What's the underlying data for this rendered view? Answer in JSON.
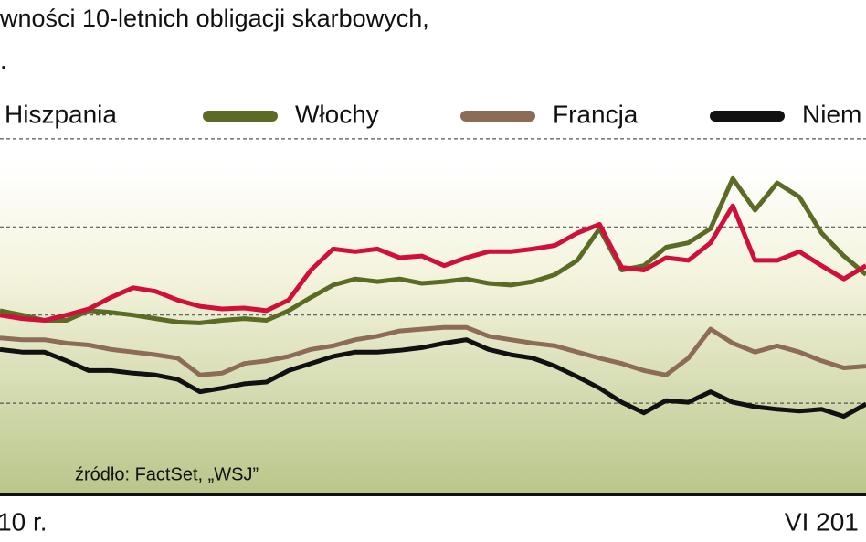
{
  "chart_data": {
    "type": "line",
    "title": "wności 10-letnich obligacji skarbowych,",
    "subtitle": ".",
    "source": "źródło: FactSet, „WSJ”",
    "categories": [
      null,
      "10 r.",
      null,
      null,
      null,
      null,
      null,
      null,
      null,
      null,
      null,
      null,
      null,
      null,
      null,
      null,
      null,
      null,
      null,
      null,
      null,
      null,
      null,
      null,
      null,
      null,
      null,
      null,
      null,
      null,
      null,
      null,
      null,
      null,
      null,
      null,
      null,
      "VI 201",
      null,
      null
    ],
    "ylim": [
      2,
      7
    ],
    "yticks": [
      3,
      4,
      5,
      6
    ],
    "grid": true,
    "series": [
      {
        "name": "Hiszpania",
        "color": "#d0103a",
        "values": [
          4.0,
          3.96,
          3.94,
          4.0,
          4.07,
          4.2,
          4.31,
          4.27,
          4.17,
          4.1,
          4.07,
          4.08,
          4.05,
          4.17,
          4.51,
          4.75,
          4.72,
          4.75,
          4.65,
          4.67,
          4.56,
          4.65,
          4.72,
          4.72,
          4.75,
          4.79,
          4.93,
          5.03,
          4.54,
          4.51,
          4.65,
          4.62,
          4.82,
          5.24,
          4.62,
          4.62,
          4.72,
          4.56,
          4.41,
          4.56
        ]
      },
      {
        "name": "Włochy",
        "color": "#5b6b26",
        "values": [
          4.05,
          4.0,
          3.94,
          3.94,
          4.05,
          4.03,
          4.0,
          3.96,
          3.92,
          3.91,
          3.94,
          3.96,
          3.94,
          4.05,
          4.2,
          4.34,
          4.41,
          4.38,
          4.41,
          4.36,
          4.38,
          4.41,
          4.36,
          4.34,
          4.38,
          4.46,
          4.62,
          4.98,
          4.51,
          4.56,
          4.77,
          4.82,
          4.98,
          5.55,
          5.19,
          5.5,
          5.34,
          4.93,
          4.67,
          4.46
        ]
      },
      {
        "name": "Francja",
        "color": "#8c6b57",
        "values": [
          3.74,
          3.72,
          3.72,
          3.68,
          3.66,
          3.61,
          3.58,
          3.55,
          3.51,
          3.32,
          3.34,
          3.45,
          3.48,
          3.53,
          3.61,
          3.65,
          3.72,
          3.76,
          3.82,
          3.84,
          3.86,
          3.86,
          3.76,
          3.72,
          3.68,
          3.65,
          3.58,
          3.51,
          3.45,
          3.37,
          3.32,
          3.51,
          3.84,
          3.68,
          3.58,
          3.65,
          3.58,
          3.48,
          3.4,
          3.42
        ]
      },
      {
        "name": "Niem",
        "color": "#111111",
        "values": [
          3.61,
          3.58,
          3.58,
          3.48,
          3.37,
          3.37,
          3.34,
          3.32,
          3.27,
          3.13,
          3.17,
          3.22,
          3.24,
          3.37,
          3.45,
          3.53,
          3.58,
          3.58,
          3.6,
          3.63,
          3.68,
          3.72,
          3.61,
          3.55,
          3.51,
          3.42,
          3.3,
          3.17,
          3.01,
          2.89,
          3.03,
          3.01,
          3.13,
          3.01,
          2.96,
          2.93,
          2.91,
          2.93,
          2.85,
          2.99
        ]
      }
    ]
  }
}
